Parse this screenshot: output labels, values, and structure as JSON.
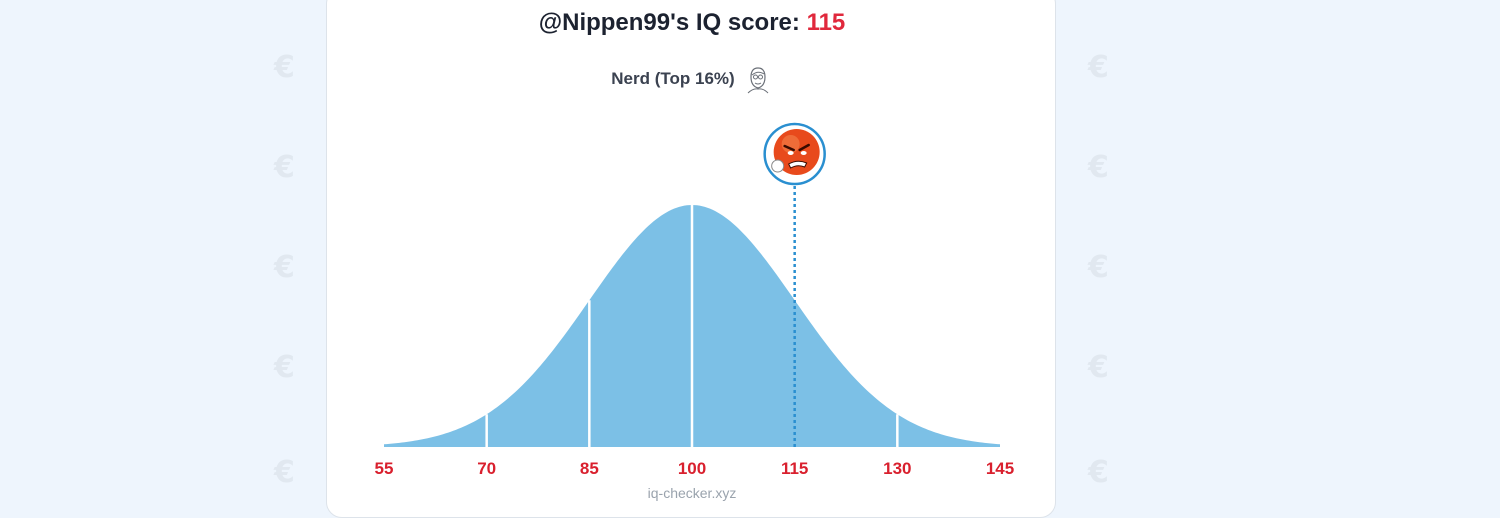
{
  "header": {
    "title_prefix": "@Nippen99's IQ score: ",
    "score": "115",
    "subtitle": "Nerd (Top 16%)"
  },
  "icons": {
    "subtitle_icon": "nerd-sketch-icon",
    "marker_icon": "angry-face-avatar-icon",
    "background_icon": "iq-checker-logo-icon"
  },
  "colors": {
    "curve_fill": "#7cc0e6",
    "marker_line": "#2a8fd0",
    "score_red": "#e0283c",
    "tick_label_red": "#d9202e",
    "background": "#eef5fd"
  },
  "chart_data": {
    "type": "area",
    "distribution": "normal",
    "mean": 100,
    "sd": 15,
    "xlim": [
      55,
      145
    ],
    "x_ticks": [
      55,
      70,
      85,
      100,
      115,
      130,
      145
    ],
    "x_tick_labels": [
      "55",
      "70",
      "85",
      "100",
      "115",
      "130",
      "145"
    ],
    "divider_lines": [
      70,
      85,
      100,
      130
    ],
    "marker_value": 115
  },
  "footer": {
    "site": "iq-checker.xyz"
  }
}
